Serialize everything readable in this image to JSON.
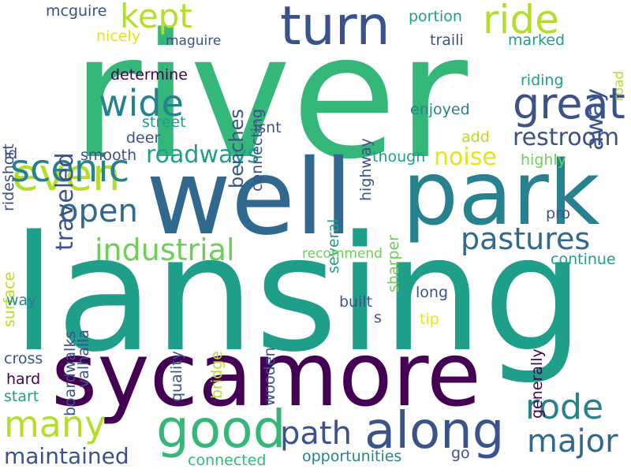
{
  "palette": {
    "purple": "#440154",
    "indigo": "#3b528b",
    "blue": "#31688e",
    "teal": "#26828e",
    "cyan": "#1f9e89",
    "green": "#35b779",
    "lightgreen": "#6ece58",
    "lime": "#b5de2b",
    "yellow": "#e5e419"
  },
  "words": [
    {
      "text": "river",
      "color": "green"
    },
    {
      "text": "lansing",
      "color": "cyan"
    },
    {
      "text": "well",
      "color": "blue"
    },
    {
      "text": "park",
      "color": "teal"
    },
    {
      "text": "sycamore",
      "color": "purple"
    },
    {
      "text": "turn",
      "color": "indigo"
    },
    {
      "text": "along",
      "color": "indigo"
    },
    {
      "text": "good",
      "color": "green"
    },
    {
      "text": "great",
      "color": "indigo"
    },
    {
      "text": "wide",
      "color": "teal"
    },
    {
      "text": "even",
      "color": "lime"
    },
    {
      "text": "ride",
      "color": "lime"
    },
    {
      "text": "scenic",
      "color": "teal"
    },
    {
      "text": "kept",
      "color": "lime"
    },
    {
      "text": "open",
      "color": "blue"
    },
    {
      "text": "many",
      "color": "lime"
    },
    {
      "text": "rode",
      "color": "teal"
    },
    {
      "text": "major",
      "color": "blue"
    },
    {
      "text": "path",
      "color": "indigo"
    },
    {
      "text": "industrial",
      "color": "lightgreen"
    },
    {
      "text": "pastures",
      "color": "blue"
    },
    {
      "text": "restroom",
      "color": "indigo"
    },
    {
      "text": "roadways",
      "color": "cyan"
    },
    {
      "text": "maintained",
      "color": "indigo"
    },
    {
      "text": "away",
      "color": "indigo"
    },
    {
      "text": "traveled",
      "color": "indigo"
    },
    {
      "text": "benches",
      "color": "indigo"
    },
    {
      "text": "noise",
      "color": "yellow"
    },
    {
      "text": "mcguire",
      "color": "indigo"
    },
    {
      "text": "nicely",
      "color": "yellow"
    },
    {
      "text": "maguire",
      "color": "indigo"
    },
    {
      "text": "connecting",
      "color": "indigo"
    },
    {
      "text": "portion",
      "color": "cyan"
    },
    {
      "text": "traili",
      "color": "indigo"
    },
    {
      "text": "marked",
      "color": "cyan"
    },
    {
      "text": "road",
      "color": "lime"
    },
    {
      "text": "riding",
      "color": "cyan"
    },
    {
      "text": "determine",
      "color": "purple"
    },
    {
      "text": "rideshort",
      "color": "indigo"
    },
    {
      "text": "street",
      "color": "cyan"
    },
    {
      "text": "isnt",
      "color": "indigo"
    },
    {
      "text": "highway",
      "color": "indigo"
    },
    {
      "text": "enjoyed",
      "color": "teal"
    },
    {
      "text": "deer",
      "color": "indigo"
    },
    {
      "text": "smooth",
      "color": "indigo"
    },
    {
      "text": "add",
      "color": "lime"
    },
    {
      "text": "id",
      "color": "indigo"
    },
    {
      "text": "though",
      "color": "cyan"
    },
    {
      "text": "highly",
      "color": "lightgreen"
    },
    {
      "text": "several",
      "color": "cyan"
    },
    {
      "text": "sharper",
      "color": "lightgreen"
    },
    {
      "text": "pro",
      "color": "indigo"
    },
    {
      "text": "surface",
      "color": "lime"
    },
    {
      "text": "boardwalks",
      "color": "indigo"
    },
    {
      "text": "valhalla",
      "color": "indigo"
    },
    {
      "text": "recommend",
      "color": "lightgreen"
    },
    {
      "text": "continue",
      "color": "cyan"
    },
    {
      "text": "generally",
      "color": "purple"
    },
    {
      "text": "way",
      "color": "teal"
    },
    {
      "text": "quality",
      "color": "indigo"
    },
    {
      "text": "bridge",
      "color": "lime"
    },
    {
      "text": "wooden",
      "color": "indigo"
    },
    {
      "text": "long",
      "color": "indigo"
    },
    {
      "text": "built",
      "color": "indigo"
    },
    {
      "text": "s",
      "color": "indigo"
    },
    {
      "text": "tip",
      "color": "yellow"
    },
    {
      "text": "cross",
      "color": "indigo"
    },
    {
      "text": "hard",
      "color": "purple"
    },
    {
      "text": "start",
      "color": "cyan"
    },
    {
      "text": "connected",
      "color": "green"
    },
    {
      "text": "opportunities",
      "color": "teal"
    },
    {
      "text": "go",
      "color": "indigo"
    }
  ]
}
